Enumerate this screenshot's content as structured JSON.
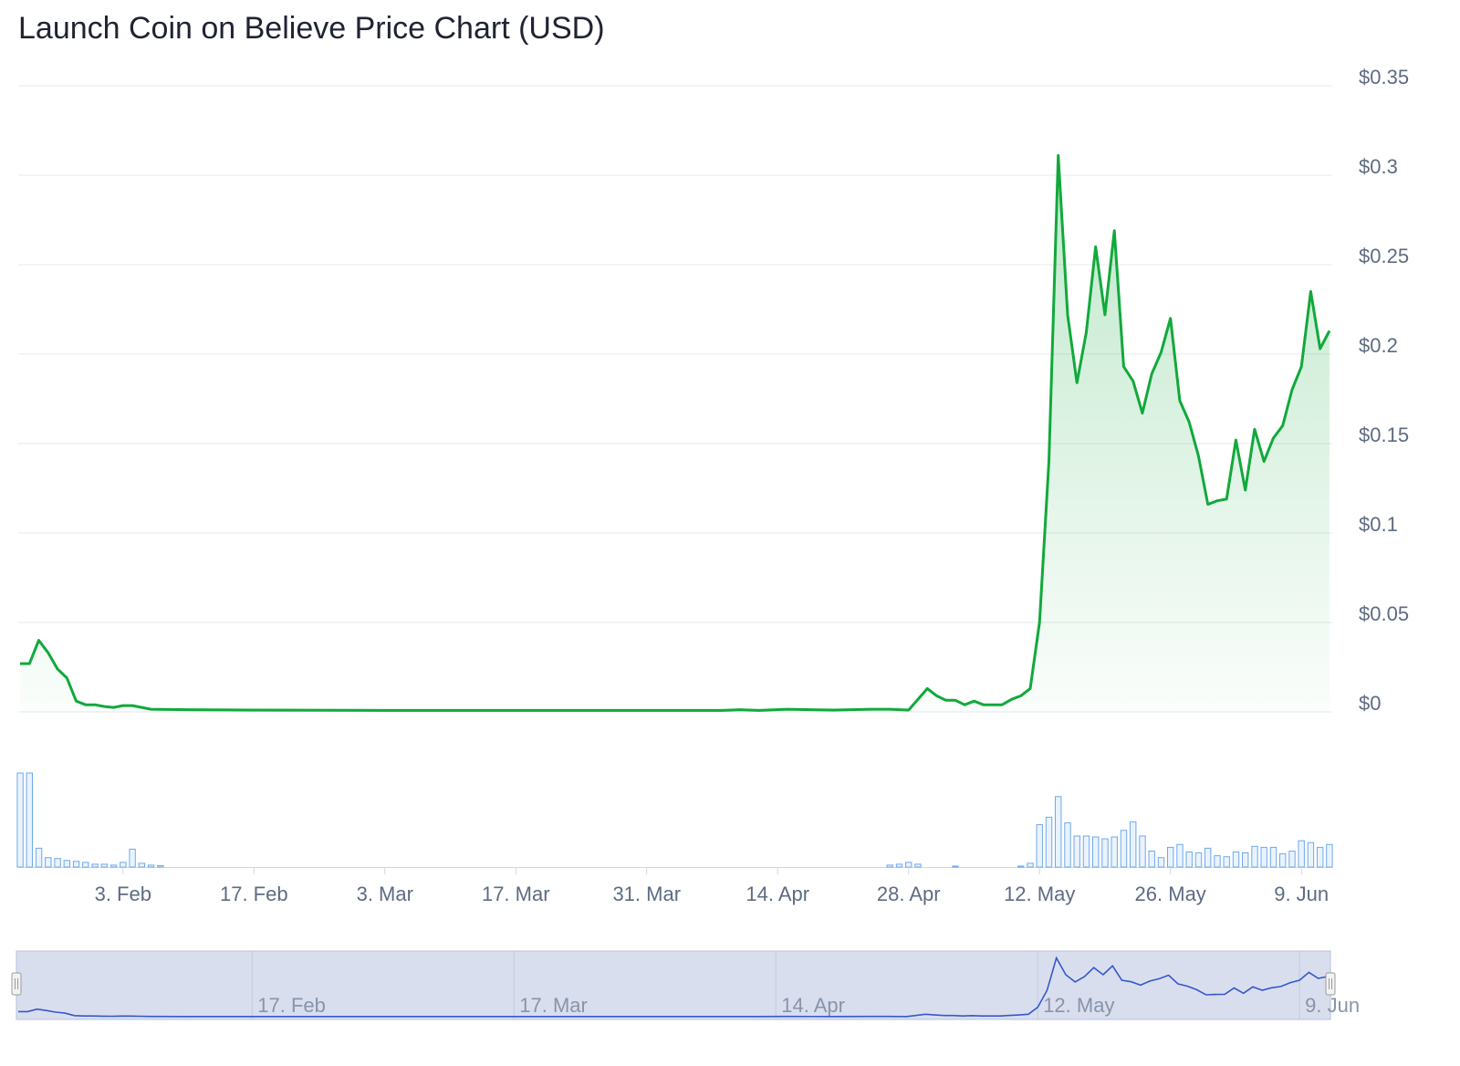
{
  "title": "Launch Coin on Believe Price Chart (USD)",
  "colors": {
    "price_line": "#11a93b",
    "price_fill": "#1aab43",
    "volume_bar": "#6fa9ec",
    "navigator_fill": "#d9deef",
    "navigator_line": "#3559c9",
    "grid": "#e6e8ee"
  },
  "chart_data": {
    "type": "line",
    "title": "Launch Coin on Believe Price Chart (USD)",
    "xlabel": "",
    "ylabel": "",
    "ylim": [
      0,
      0.35
    ],
    "y_ticks": [
      {
        "value": 0.35,
        "label": "$0.35"
      },
      {
        "value": 0.3,
        "label": "$0.3"
      },
      {
        "value": 0.25,
        "label": "$0.25"
      },
      {
        "value": 0.2,
        "label": "$0.2"
      },
      {
        "value": 0.15,
        "label": "$0.15"
      },
      {
        "value": 0.1,
        "label": "$0.1"
      },
      {
        "value": 0.05,
        "label": "$0.05"
      },
      {
        "value": 0,
        "label": "$0"
      }
    ],
    "x_ticks": [
      {
        "date": "2025-02-03",
        "label": "3. Feb"
      },
      {
        "date": "2025-02-17",
        "label": "17. Feb"
      },
      {
        "date": "2025-03-03",
        "label": "3. Mar"
      },
      {
        "date": "2025-03-17",
        "label": "17. Mar"
      },
      {
        "date": "2025-03-31",
        "label": "31. Mar"
      },
      {
        "date": "2025-04-14",
        "label": "14. Apr"
      },
      {
        "date": "2025-04-28",
        "label": "28. Apr"
      },
      {
        "date": "2025-05-12",
        "label": "12. May"
      },
      {
        "date": "2025-05-26",
        "label": "26. May"
      },
      {
        "date": "2025-06-09",
        "label": "9. Jun"
      }
    ],
    "navigator_ticks": [
      {
        "date": "2025-02-17",
        "label": "17. Feb"
      },
      {
        "date": "2025-03-17",
        "label": "17. Mar"
      },
      {
        "date": "2025-04-14",
        "label": "14. Apr"
      },
      {
        "date": "2025-05-12",
        "label": "12. May"
      },
      {
        "date": "2025-06-09",
        "label": "9. Jun"
      }
    ],
    "grid": true,
    "series": [
      {
        "points": [
          [
            "2025-01-23",
            0.027
          ],
          [
            "2025-01-24",
            0.027
          ],
          [
            "2025-01-25",
            0.04
          ],
          [
            "2025-01-26",
            0.033
          ],
          [
            "2025-01-27",
            0.024
          ],
          [
            "2025-01-28",
            0.019
          ],
          [
            "2025-01-29",
            0.006
          ],
          [
            "2025-01-30",
            0.004
          ],
          [
            "2025-01-31",
            0.004
          ],
          [
            "2025-02-01",
            0.003
          ],
          [
            "2025-02-02",
            0.0025
          ],
          [
            "2025-02-03",
            0.0035
          ],
          [
            "2025-02-04",
            0.0035
          ],
          [
            "2025-02-05",
            0.0025
          ],
          [
            "2025-02-06",
            0.0015
          ],
          [
            "2025-02-10",
            0.0012
          ],
          [
            "2025-02-17",
            0.001
          ],
          [
            "2025-03-03",
            0.0008
          ],
          [
            "2025-03-17",
            0.0008
          ],
          [
            "2025-03-31",
            0.0008
          ],
          [
            "2025-04-08",
            0.0008
          ],
          [
            "2025-04-10",
            0.0012
          ],
          [
            "2025-04-12",
            0.0008
          ],
          [
            "2025-04-15",
            0.0015
          ],
          [
            "2025-04-20",
            0.001
          ],
          [
            "2025-04-24",
            0.0015
          ],
          [
            "2025-04-26",
            0.0015
          ],
          [
            "2025-04-28",
            0.001
          ],
          [
            "2025-04-29",
            0.007
          ],
          [
            "2025-04-30",
            0.013
          ],
          [
            "2025-05-01",
            0.009
          ],
          [
            "2025-05-02",
            0.0065
          ],
          [
            "2025-05-03",
            0.0065
          ],
          [
            "2025-05-04",
            0.004
          ],
          [
            "2025-05-05",
            0.006
          ],
          [
            "2025-05-06",
            0.004
          ],
          [
            "2025-05-07",
            0.004
          ],
          [
            "2025-05-08",
            0.004
          ],
          [
            "2025-05-09",
            0.007
          ],
          [
            "2025-05-10",
            0.009
          ],
          [
            "2025-05-11",
            0.013
          ],
          [
            "2025-05-12",
            0.05
          ],
          [
            "2025-05-13",
            0.14
          ],
          [
            "2025-05-14",
            0.311
          ],
          [
            "2025-05-15",
            0.222
          ],
          [
            "2025-05-16",
            0.184
          ],
          [
            "2025-05-17",
            0.212
          ],
          [
            "2025-05-18",
            0.26
          ],
          [
            "2025-05-19",
            0.222
          ],
          [
            "2025-05-20",
            0.269
          ],
          [
            "2025-05-21",
            0.193
          ],
          [
            "2025-05-22",
            0.185
          ],
          [
            "2025-05-23",
            0.167
          ],
          [
            "2025-05-24",
            0.189
          ],
          [
            "2025-05-25",
            0.201
          ],
          [
            "2025-05-26",
            0.22
          ],
          [
            "2025-05-27",
            0.174
          ],
          [
            "2025-05-28",
            0.162
          ],
          [
            "2025-05-29",
            0.143
          ],
          [
            "2025-05-30",
            0.116
          ],
          [
            "2025-05-31",
            0.118
          ],
          [
            "2025-06-01",
            0.119
          ],
          [
            "2025-06-02",
            0.152
          ],
          [
            "2025-06-03",
            0.124
          ],
          [
            "2025-06-04",
            0.158
          ],
          [
            "2025-06-05",
            0.14
          ],
          [
            "2025-06-06",
            0.153
          ],
          [
            "2025-06-07",
            0.16
          ],
          [
            "2025-06-08",
            0.18
          ],
          [
            "2025-06-09",
            0.193
          ],
          [
            "2025-06-10",
            0.235
          ],
          [
            "2025-06-11",
            0.203
          ],
          [
            "2025-06-12",
            0.213
          ]
        ]
      }
    ],
    "volume": [
      [
        "2025-01-23",
        1.0
      ],
      [
        "2025-01-24",
        1.0
      ],
      [
        "2025-01-25",
        0.2
      ],
      [
        "2025-01-26",
        0.1
      ],
      [
        "2025-01-27",
        0.09
      ],
      [
        "2025-01-28",
        0.07
      ],
      [
        "2025-01-29",
        0.06
      ],
      [
        "2025-01-30",
        0.05
      ],
      [
        "2025-01-31",
        0.03
      ],
      [
        "2025-02-01",
        0.03
      ],
      [
        "2025-02-02",
        0.02
      ],
      [
        "2025-02-03",
        0.05
      ],
      [
        "2025-02-04",
        0.19
      ],
      [
        "2025-02-05",
        0.04
      ],
      [
        "2025-02-06",
        0.02
      ],
      [
        "2025-02-07",
        0.015
      ],
      [
        "2025-04-26",
        0.02
      ],
      [
        "2025-04-27",
        0.03
      ],
      [
        "2025-04-28",
        0.05
      ],
      [
        "2025-04-29",
        0.03
      ],
      [
        "2025-05-03",
        0.01
      ],
      [
        "2025-05-10",
        0.01
      ],
      [
        "2025-05-11",
        0.04
      ],
      [
        "2025-05-12",
        0.45
      ],
      [
        "2025-05-13",
        0.53
      ],
      [
        "2025-05-14",
        0.75
      ],
      [
        "2025-05-15",
        0.47
      ],
      [
        "2025-05-16",
        0.33
      ],
      [
        "2025-05-17",
        0.33
      ],
      [
        "2025-05-18",
        0.32
      ],
      [
        "2025-05-19",
        0.3
      ],
      [
        "2025-05-20",
        0.32
      ],
      [
        "2025-05-21",
        0.39
      ],
      [
        "2025-05-22",
        0.48
      ],
      [
        "2025-05-23",
        0.33
      ],
      [
        "2025-05-24",
        0.17
      ],
      [
        "2025-05-25",
        0.1
      ],
      [
        "2025-05-26",
        0.21
      ],
      [
        "2025-05-27",
        0.24
      ],
      [
        "2025-05-28",
        0.16
      ],
      [
        "2025-05-29",
        0.15
      ],
      [
        "2025-05-30",
        0.2
      ],
      [
        "2025-05-31",
        0.12
      ],
      [
        "2025-06-01",
        0.11
      ],
      [
        "2025-06-02",
        0.16
      ],
      [
        "2025-06-03",
        0.15
      ],
      [
        "2025-06-04",
        0.22
      ],
      [
        "2025-06-05",
        0.21
      ],
      [
        "2025-06-06",
        0.21
      ],
      [
        "2025-06-07",
        0.14
      ],
      [
        "2025-06-08",
        0.17
      ],
      [
        "2025-06-09",
        0.28
      ],
      [
        "2025-06-10",
        0.26
      ],
      [
        "2025-06-11",
        0.21
      ],
      [
        "2025-06-12",
        0.24
      ]
    ]
  }
}
